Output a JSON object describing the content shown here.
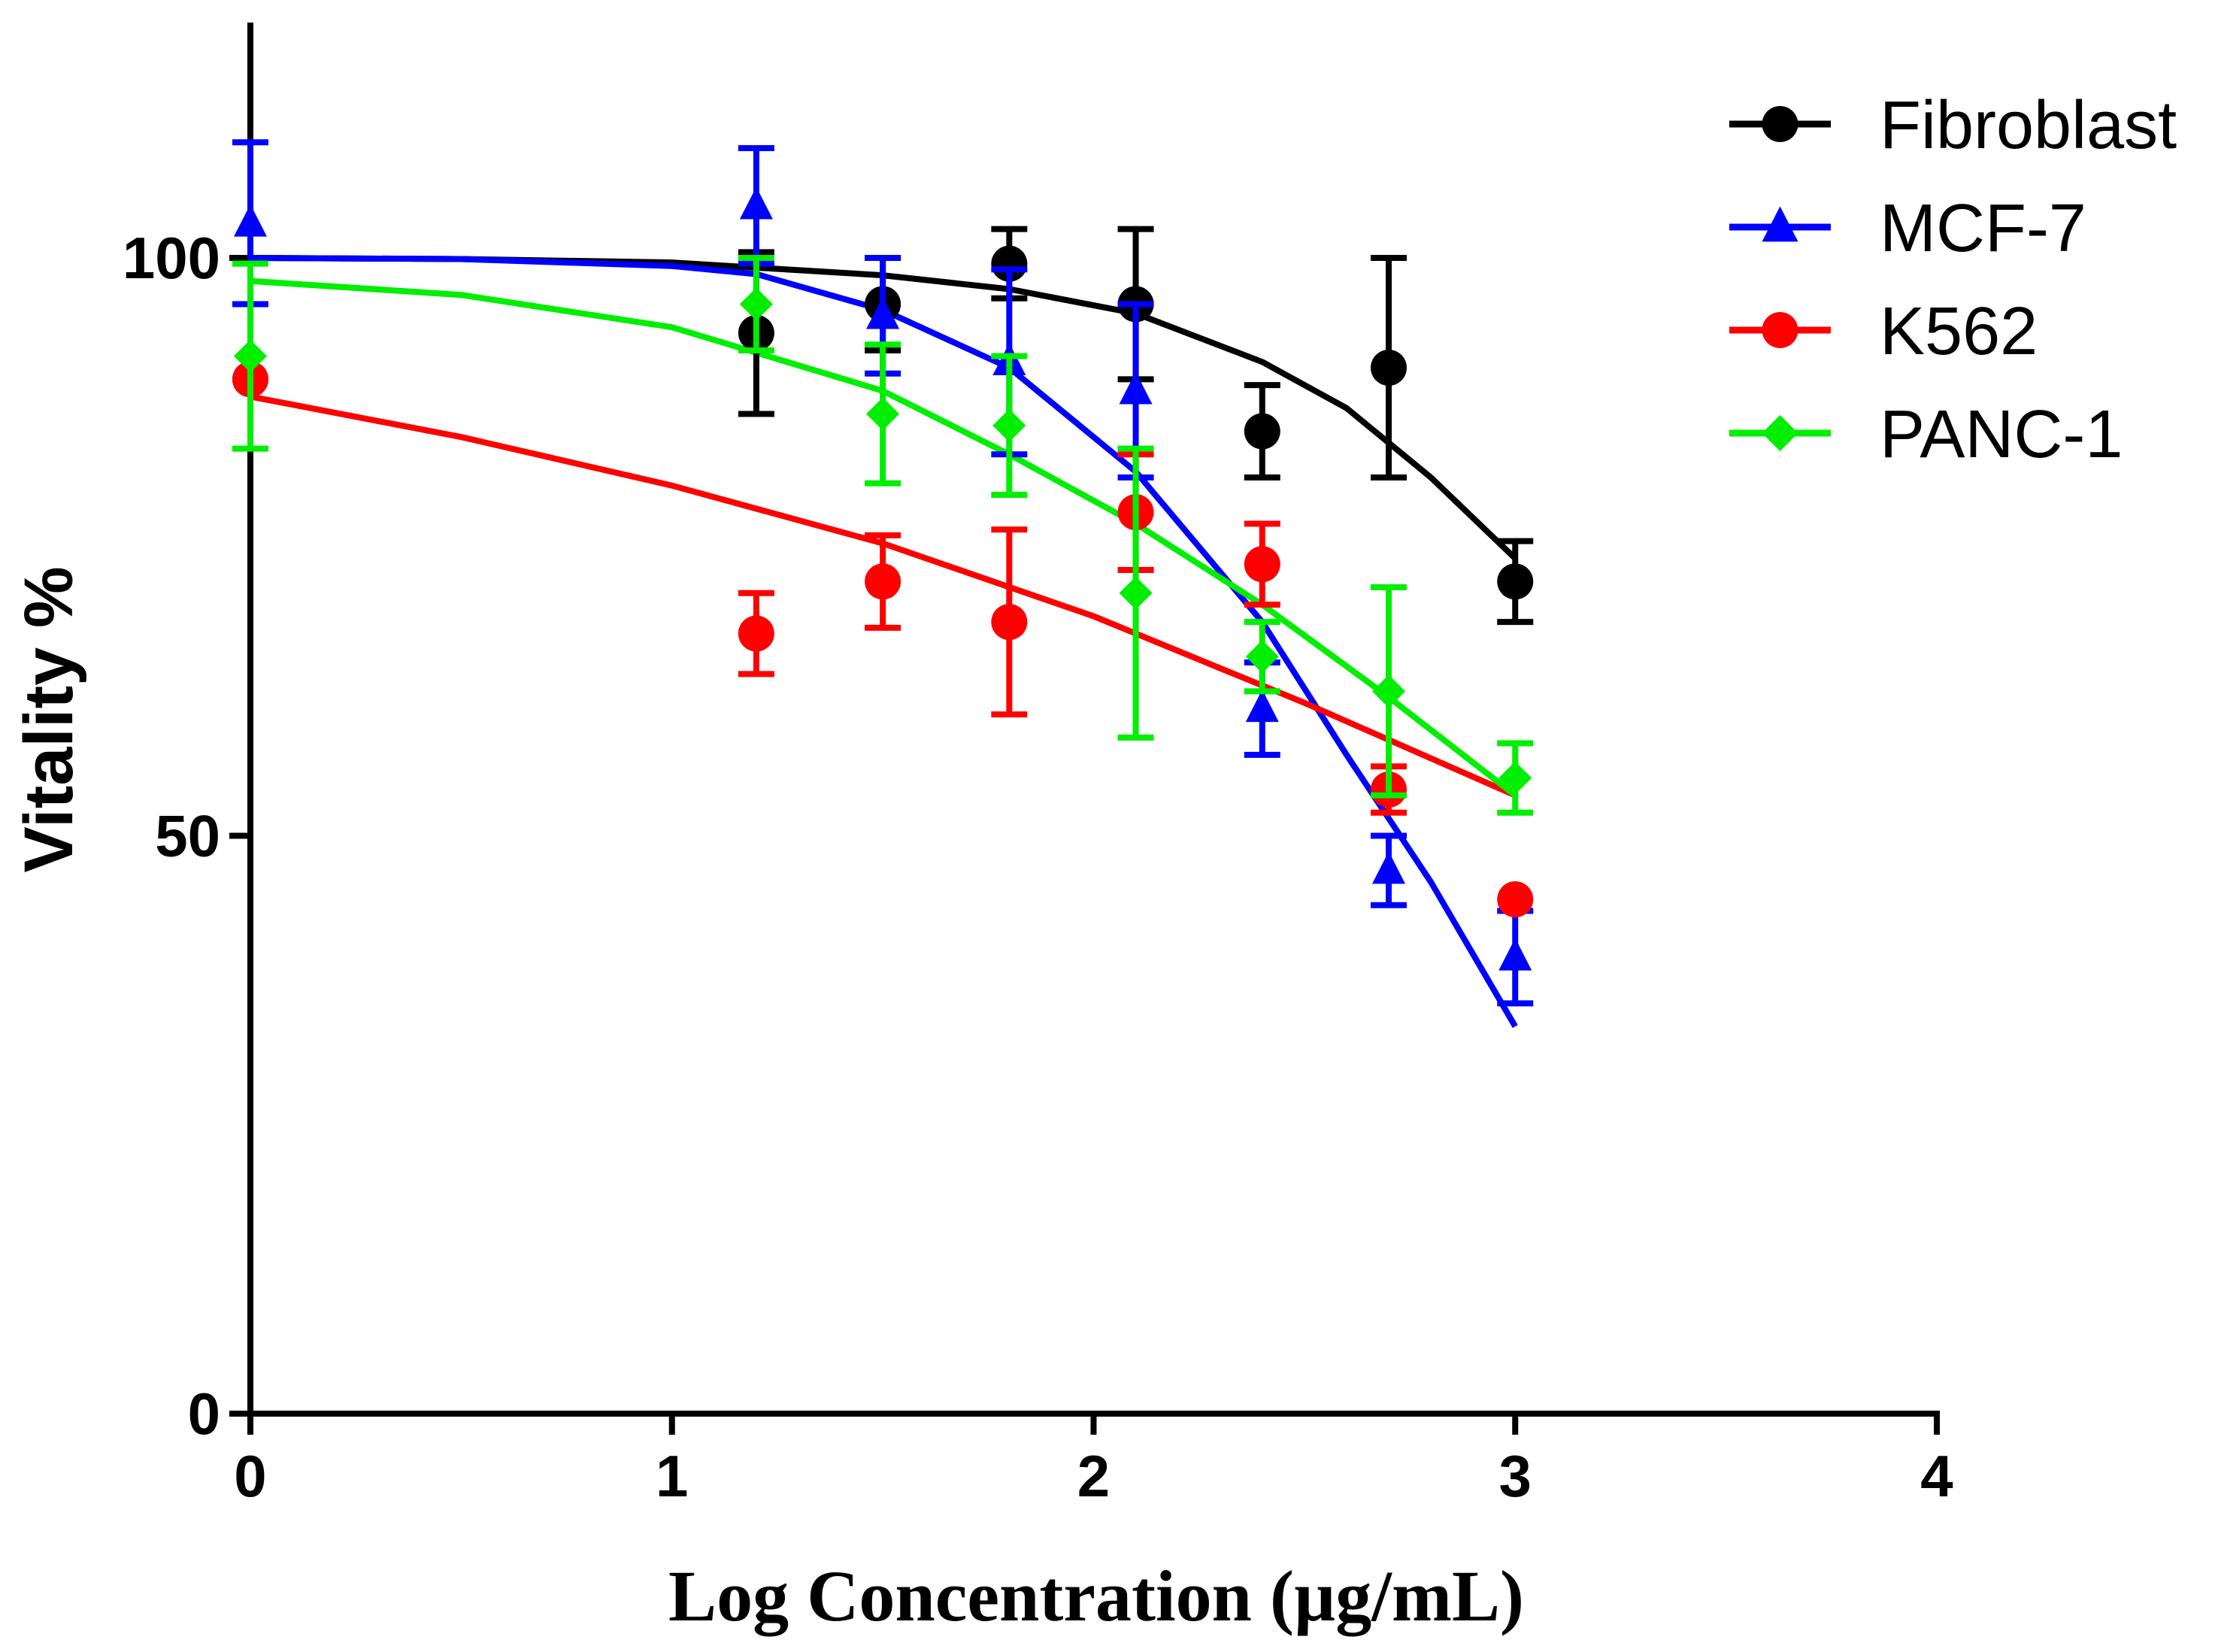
{
  "chart_data": {
    "type": "scatter",
    "title": "",
    "xlabel": "Log Concentration (µg/mL)",
    "ylabel": "Vitality %",
    "xlim": [
      0,
      4
    ],
    "ylim": [
      0,
      120
    ],
    "x_ticks": [
      "0",
      "1",
      "2",
      "3",
      "4"
    ],
    "y_ticks": [
      "0",
      "50",
      "100"
    ],
    "x_tick_values": [
      0,
      1,
      2,
      3,
      4
    ],
    "y_tick_values": [
      0,
      50,
      100
    ],
    "grid": false,
    "legend_position": "top-right",
    "series": [
      {
        "name": "Fibroblast",
        "color": "#000000",
        "marker": "circle",
        "x": [
          0,
          1.2,
          1.5,
          1.8,
          2.1,
          2.4,
          2.7,
          3.0
        ],
        "y": [
          89.5,
          93.5,
          96.0,
          99.5,
          96.0,
          85.0,
          90.5,
          72.0
        ],
        "err": [
          0,
          7.0,
          4.0,
          3.0,
          6.5,
          4.0,
          9.5,
          3.5
        ],
        "fit": [
          [
            0,
            100.0
          ],
          [
            0.5,
            99.9
          ],
          [
            1.0,
            99.6
          ],
          [
            1.5,
            98.5
          ],
          [
            1.8,
            97.3
          ],
          [
            2.1,
            95.2
          ],
          [
            2.4,
            91.0
          ],
          [
            2.6,
            87.0
          ],
          [
            2.8,
            81.0
          ],
          [
            3.0,
            74.0
          ]
        ]
      },
      {
        "name": "MCF-7",
        "color": "#0000ff",
        "marker": "triangle",
        "x": [
          0,
          1.2,
          1.5,
          1.8,
          2.1,
          2.4,
          2.7,
          3.0
        ],
        "y": [
          103.0,
          104.5,
          95.0,
          91.0,
          88.5,
          61.0,
          47.0,
          39.5
        ],
        "err": [
          7.0,
          5.0,
          5.0,
          8.0,
          7.5,
          4.0,
          3.0,
          4.0
        ],
        "fit": [
          [
            0,
            100.0
          ],
          [
            0.5,
            99.9
          ],
          [
            1.0,
            99.3
          ],
          [
            1.2,
            98.6
          ],
          [
            1.5,
            95.5
          ],
          [
            1.8,
            90.5
          ],
          [
            2.1,
            81.5
          ],
          [
            2.4,
            68.5
          ],
          [
            2.6,
            57.0
          ],
          [
            2.8,
            46.0
          ],
          [
            3.0,
            33.5
          ]
        ]
      },
      {
        "name": "K562",
        "color": "#ff0000",
        "marker": "circle",
        "x": [
          0,
          1.2,
          1.5,
          1.8,
          2.1,
          2.4,
          2.7,
          3.0
        ],
        "y": [
          89.5,
          67.5,
          72.0,
          68.5,
          78.0,
          73.5,
          54.0,
          44.5
        ],
        "err": [
          0,
          3.5,
          4.0,
          8.0,
          5.0,
          3.5,
          2.0,
          0
        ],
        "fit": [
          [
            0,
            88.0
          ],
          [
            0.5,
            84.5
          ],
          [
            1.0,
            80.3
          ],
          [
            1.5,
            75.3
          ],
          [
            2.0,
            69.0
          ],
          [
            2.5,
            61.5
          ],
          [
            3.0,
            53.5
          ]
        ]
      },
      {
        "name": "PANC-1",
        "color": "#00ee00",
        "marker": "diamond",
        "x": [
          0,
          1.2,
          1.5,
          1.8,
          2.1,
          2.4,
          2.7,
          3.0
        ],
        "y": [
          91.5,
          96.0,
          86.5,
          85.5,
          71.0,
          65.5,
          62.5,
          55.0
        ],
        "err": [
          8.0,
          4.0,
          6.0,
          6.0,
          12.5,
          3.0,
          9.0,
          3.0
        ],
        "fit": [
          [
            0,
            98.0
          ],
          [
            0.5,
            96.8
          ],
          [
            1.0,
            94.0
          ],
          [
            1.5,
            88.5
          ],
          [
            1.8,
            83.0
          ],
          [
            2.1,
            77.0
          ],
          [
            2.4,
            70.0
          ],
          [
            2.7,
            62.0
          ],
          [
            3.0,
            53.5
          ]
        ]
      }
    ]
  }
}
